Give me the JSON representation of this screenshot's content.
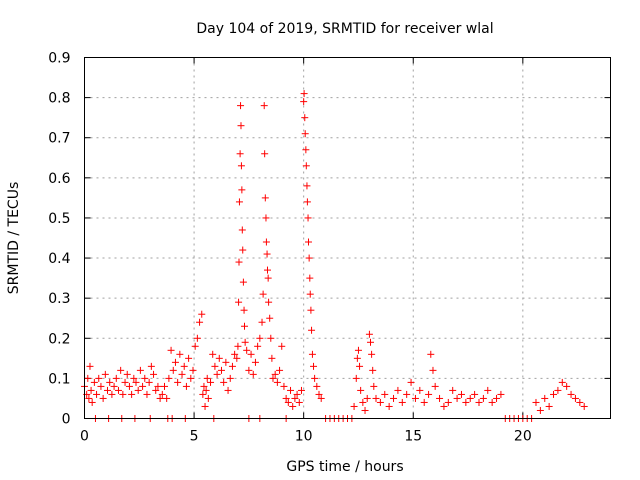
{
  "chart_data": {
    "type": "scatter",
    "title": "Day 104 of 2019, SRMTID for receiver wlal",
    "xlabel": "GPS time / hours",
    "ylabel": "SRMTID / TECUs",
    "xlim": [
      0,
      24
    ],
    "ylim": [
      0,
      0.9
    ],
    "xticks": [
      0,
      5,
      10,
      15,
      20
    ],
    "xtick_labels": [
      "0",
      "5",
      "10",
      "15",
      "20"
    ],
    "yticks": [
      0,
      0.1,
      0.2,
      0.3,
      0.4,
      0.5,
      0.6,
      0.7,
      0.8,
      0.9
    ],
    "ytick_labels": [
      "0",
      "0.1",
      "0.2",
      "0.3",
      "0.4",
      "0.5",
      "0.6",
      "0.7",
      "0.8",
      "0.9"
    ],
    "grid": true,
    "marker": "plus",
    "color": "#ff0000",
    "series": [
      {
        "name": "SRMTID",
        "points": [
          [
            0.0,
            0.08
          ],
          [
            0.1,
            0.06
          ],
          [
            0.15,
            0.1
          ],
          [
            0.2,
            0.05
          ],
          [
            0.25,
            0.13
          ],
          [
            0.3,
            0.07
          ],
          [
            0.35,
            0.04
          ],
          [
            0.45,
            0.09
          ],
          [
            0.55,
            0.06
          ],
          [
            0.65,
            0.1
          ],
          [
            0.75,
            0.08
          ],
          [
            0.85,
            0.05
          ],
          [
            0.95,
            0.11
          ],
          [
            1.05,
            0.07
          ],
          [
            1.15,
            0.09
          ],
          [
            1.25,
            0.06
          ],
          [
            1.35,
            0.08
          ],
          [
            1.45,
            0.1
          ],
          [
            1.55,
            0.07
          ],
          [
            1.65,
            0.12
          ],
          [
            1.75,
            0.06
          ],
          [
            1.85,
            0.09
          ],
          [
            1.95,
            0.11
          ],
          [
            2.05,
            0.08
          ],
          [
            2.15,
            0.06
          ],
          [
            2.25,
            0.1
          ],
          [
            2.35,
            0.09
          ],
          [
            2.45,
            0.07
          ],
          [
            2.55,
            0.12
          ],
          [
            2.65,
            0.08
          ],
          [
            2.75,
            0.1
          ],
          [
            2.85,
            0.06
          ],
          [
            2.95,
            0.09
          ],
          [
            3.05,
            0.13
          ],
          [
            3.15,
            0.11
          ],
          [
            3.25,
            0.07
          ],
          [
            3.35,
            0.08
          ],
          [
            3.45,
            0.05
          ],
          [
            3.55,
            0.06
          ],
          [
            3.65,
            0.08
          ],
          [
            3.75,
            0.05
          ],
          [
            3.85,
            0.1
          ],
          [
            3.95,
            0.17
          ],
          [
            4.05,
            0.12
          ],
          [
            4.15,
            0.14
          ],
          [
            4.25,
            0.09
          ],
          [
            4.35,
            0.16
          ],
          [
            4.45,
            0.11
          ],
          [
            4.55,
            0.13
          ],
          [
            4.65,
            0.08
          ],
          [
            4.75,
            0.15
          ],
          [
            4.85,
            0.1
          ],
          [
            4.95,
            0.12
          ],
          [
            5.05,
            0.18
          ],
          [
            5.15,
            0.2
          ],
          [
            5.25,
            0.24
          ],
          [
            5.35,
            0.26
          ],
          [
            5.4,
            0.06
          ],
          [
            5.45,
            0.08
          ],
          [
            5.5,
            0.03
          ],
          [
            5.55,
            0.07
          ],
          [
            5.6,
            0.1
          ],
          [
            5.65,
            0.05
          ],
          [
            5.75,
            0.09
          ],
          [
            5.85,
            0.16
          ],
          [
            5.95,
            0.13
          ],
          [
            6.05,
            0.11
          ],
          [
            6.15,
            0.15
          ],
          [
            6.25,
            0.12
          ],
          [
            6.35,
            0.09
          ],
          [
            6.45,
            0.14
          ],
          [
            6.55,
            0.07
          ],
          [
            6.65,
            0.1
          ],
          [
            6.75,
            0.13
          ],
          [
            6.85,
            0.16
          ],
          [
            6.95,
            0.15
          ],
          [
            7.0,
            0.18
          ],
          [
            7.03,
            0.29
          ],
          [
            7.05,
            0.39
          ],
          [
            7.07,
            0.54
          ],
          [
            7.1,
            0.66
          ],
          [
            7.12,
            0.78
          ],
          [
            7.14,
            0.73
          ],
          [
            7.16,
            0.63
          ],
          [
            7.18,
            0.57
          ],
          [
            7.2,
            0.47
          ],
          [
            7.22,
            0.42
          ],
          [
            7.25,
            0.34
          ],
          [
            7.28,
            0.27
          ],
          [
            7.3,
            0.23
          ],
          [
            7.33,
            0.19
          ],
          [
            7.4,
            0.17
          ],
          [
            7.5,
            0.12
          ],
          [
            7.6,
            0.16
          ],
          [
            7.7,
            0.11
          ],
          [
            7.8,
            0.14
          ],
          [
            7.9,
            0.18
          ],
          [
            8.0,
            0.2
          ],
          [
            8.1,
            0.24
          ],
          [
            8.15,
            0.31
          ],
          [
            8.2,
            0.78
          ],
          [
            8.22,
            0.66
          ],
          [
            8.25,
            0.55
          ],
          [
            8.28,
            0.5
          ],
          [
            8.3,
            0.44
          ],
          [
            8.33,
            0.41
          ],
          [
            8.35,
            0.37
          ],
          [
            8.38,
            0.35
          ],
          [
            8.4,
            0.29
          ],
          [
            8.45,
            0.25
          ],
          [
            8.5,
            0.2
          ],
          [
            8.55,
            0.15
          ],
          [
            8.6,
            0.1
          ],
          [
            8.7,
            0.11
          ],
          [
            8.8,
            0.09
          ],
          [
            8.9,
            0.12
          ],
          [
            9.0,
            0.18
          ],
          [
            9.1,
            0.08
          ],
          [
            9.2,
            0.05
          ],
          [
            9.3,
            0.04
          ],
          [
            9.4,
            0.07
          ],
          [
            9.5,
            0.03
          ],
          [
            9.6,
            0.05
          ],
          [
            9.7,
            0.06
          ],
          [
            9.8,
            0.04
          ],
          [
            9.9,
            0.07
          ],
          [
            10.0,
            0.79
          ],
          [
            10.02,
            0.81
          ],
          [
            10.05,
            0.75
          ],
          [
            10.07,
            0.71
          ],
          [
            10.1,
            0.67
          ],
          [
            10.12,
            0.63
          ],
          [
            10.15,
            0.58
          ],
          [
            10.17,
            0.54
          ],
          [
            10.2,
            0.5
          ],
          [
            10.22,
            0.44
          ],
          [
            10.25,
            0.4
          ],
          [
            10.28,
            0.35
          ],
          [
            10.3,
            0.31
          ],
          [
            10.33,
            0.27
          ],
          [
            10.36,
            0.22
          ],
          [
            10.4,
            0.16
          ],
          [
            10.45,
            0.13
          ],
          [
            10.5,
            0.1
          ],
          [
            10.6,
            0.08
          ],
          [
            10.7,
            0.06
          ],
          [
            10.8,
            0.05
          ],
          [
            11.0,
            0.0
          ],
          [
            11.2,
            0.0
          ],
          [
            11.4,
            0.0
          ],
          [
            11.6,
            0.0
          ],
          [
            11.8,
            0.0
          ],
          [
            12.0,
            0.0
          ],
          [
            12.2,
            0.0
          ],
          [
            12.3,
            0.03
          ],
          [
            12.4,
            0.1
          ],
          [
            12.45,
            0.15
          ],
          [
            12.5,
            0.17
          ],
          [
            12.55,
            0.13
          ],
          [
            12.6,
            0.07
          ],
          [
            12.7,
            0.04
          ],
          [
            12.8,
            0.02
          ],
          [
            12.9,
            0.05
          ],
          [
            13.0,
            0.21
          ],
          [
            13.05,
            0.19
          ],
          [
            13.1,
            0.16
          ],
          [
            13.15,
            0.12
          ],
          [
            13.2,
            0.08
          ],
          [
            13.3,
            0.05
          ],
          [
            13.5,
            0.04
          ],
          [
            13.7,
            0.06
          ],
          [
            13.9,
            0.03
          ],
          [
            14.1,
            0.05
          ],
          [
            14.3,
            0.07
          ],
          [
            14.5,
            0.04
          ],
          [
            14.7,
            0.06
          ],
          [
            14.9,
            0.09
          ],
          [
            15.1,
            0.05
          ],
          [
            15.3,
            0.07
          ],
          [
            15.5,
            0.04
          ],
          [
            15.7,
            0.06
          ],
          [
            15.8,
            0.16
          ],
          [
            15.9,
            0.12
          ],
          [
            16.0,
            0.08
          ],
          [
            16.2,
            0.05
          ],
          [
            16.4,
            0.03
          ],
          [
            16.6,
            0.04
          ],
          [
            16.8,
            0.07
          ],
          [
            17.0,
            0.05
          ],
          [
            17.2,
            0.06
          ],
          [
            17.4,
            0.04
          ],
          [
            17.6,
            0.05
          ],
          [
            17.8,
            0.06
          ],
          [
            18.0,
            0.04
          ],
          [
            18.2,
            0.05
          ],
          [
            18.4,
            0.07
          ],
          [
            18.6,
            0.04
          ],
          [
            18.8,
            0.05
          ],
          [
            19.0,
            0.06
          ],
          [
            19.2,
            0.0
          ],
          [
            19.4,
            0.0
          ],
          [
            19.6,
            0.0
          ],
          [
            19.8,
            0.0
          ],
          [
            20.0,
            0.0
          ],
          [
            20.2,
            0.0
          ],
          [
            20.4,
            0.0
          ],
          [
            20.6,
            0.04
          ],
          [
            20.8,
            0.02
          ],
          [
            21.0,
            0.05
          ],
          [
            21.2,
            0.03
          ],
          [
            21.4,
            0.06
          ],
          [
            21.6,
            0.07
          ],
          [
            21.8,
            0.09
          ],
          [
            22.0,
            0.08
          ],
          [
            22.2,
            0.06
          ],
          [
            22.4,
            0.05
          ],
          [
            22.6,
            0.04
          ],
          [
            22.8,
            0.03
          ],
          [
            0.5,
            0.0
          ],
          [
            1.1,
            0.0
          ],
          [
            1.7,
            0.0
          ],
          [
            2.3,
            0.0
          ],
          [
            3.0,
            0.0
          ],
          [
            3.8,
            0.0
          ],
          [
            4.0,
            0.0
          ],
          [
            4.6,
            0.0
          ],
          [
            5.9,
            0.0
          ],
          [
            7.5,
            0.0
          ],
          [
            8.0,
            0.0
          ],
          [
            9.2,
            0.0
          ]
        ]
      }
    ]
  }
}
